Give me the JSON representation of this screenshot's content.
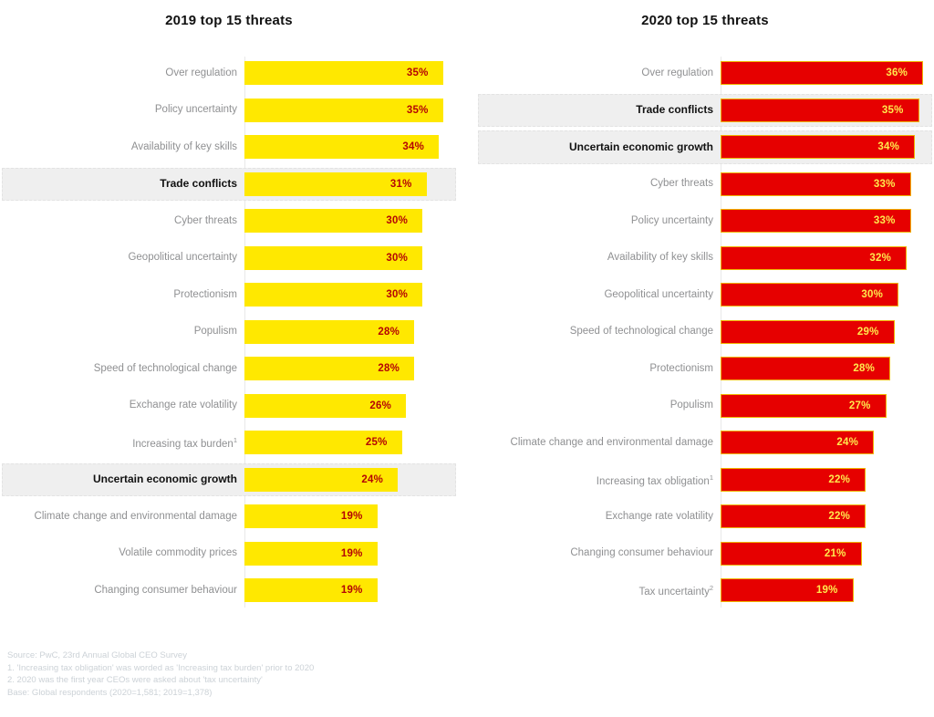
{
  "palette": {
    "background": "#ffffff",
    "highlight_band_bg": "#efefef",
    "highlight_band_border": "#e3e3e3",
    "axis_line": "#e9e9e9",
    "category_label": "#8f9092",
    "highlight_label": "#111111",
    "footer_text": "#ccd2d7"
  },
  "chart_data": [
    {
      "type": "bar",
      "orientation": "horizontal",
      "title": "2019 top 15 threats",
      "categories": [
        "Over regulation",
        "Policy uncertainty",
        "Availability of key skills",
        "Trade conflicts",
        "Cyber threats",
        "Geopolitical uncertainty",
        "Protectionism",
        "Populism",
        "Speed of technological change",
        "Exchange rate volatility",
        "Increasing tax burden",
        "Uncertain economic growth",
        "Climate change and environmental damage",
        "Volatile commodity prices",
        "Changing consumer behaviour"
      ],
      "values": [
        35,
        35,
        34,
        31,
        30,
        30,
        30,
        28,
        28,
        26,
        25,
        24,
        19,
        19,
        19
      ],
      "value_suffix": "%",
      "highlighted_categories": [
        "Trade conflicts",
        "Uncertain economic growth"
      ],
      "superscripts": {
        "Increasing tax burden": "1"
      },
      "bar_color": "#ffe800",
      "value_label_color": "#b40505",
      "bar_border_color": "",
      "xlim": [
        0,
        36
      ],
      "grid": false,
      "legend": false
    },
    {
      "type": "bar",
      "orientation": "horizontal",
      "title": "2020 top 15 threats",
      "categories": [
        "Over regulation",
        "Trade conflicts",
        "Uncertain economic growth",
        "Cyber threats",
        "Policy uncertainty",
        "Availability of key skills",
        "Geopolitical uncertainty",
        "Speed of technological change",
        "Protectionism",
        "Populism",
        "Climate change and environmental damage",
        "Increasing tax obligation",
        "Exchange rate volatility",
        "Changing consumer behaviour",
        "Tax uncertainty"
      ],
      "values": [
        36,
        35,
        34,
        33,
        33,
        32,
        30,
        29,
        28,
        27,
        24,
        22,
        22,
        21,
        19
      ],
      "value_suffix": "%",
      "highlighted_categories": [
        "Trade conflicts",
        "Uncertain economic growth"
      ],
      "superscripts": {
        "Increasing tax obligation": "1",
        "Tax uncertainty": "2"
      },
      "bar_color": "#e60000",
      "value_label_color": "#ffe94d",
      "bar_border_color": "#f0b400",
      "xlim": [
        0,
        36
      ],
      "grid": false,
      "legend": false
    }
  ],
  "footer": {
    "lines": [
      "Source: PwC, 23rd Annual Global CEO Survey",
      "1. 'Increasing tax obligation' was worded as 'Increasing tax burden' prior to 2020",
      "2. 2020 was the first year CEOs were asked about 'tax uncertainty'",
      "Base: Global respondents (2020=1,581; 2019=1,378)"
    ]
  }
}
